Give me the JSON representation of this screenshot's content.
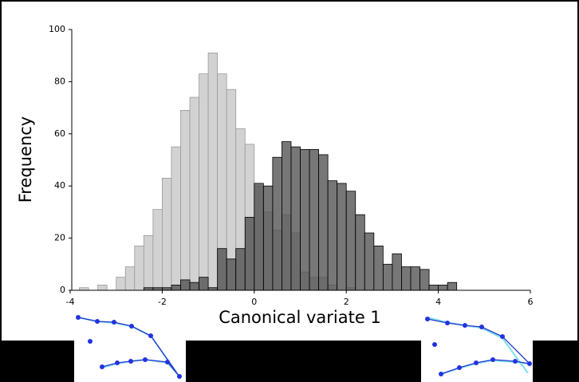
{
  "chart_data": {
    "type": "histogram",
    "xlabel": "Canonical variate 1",
    "ylabel": "Frequency",
    "xlim": [
      -4,
      6
    ],
    "ylim": [
      0,
      100
    ],
    "xticks": [
      -4,
      -2,
      0,
      2,
      4,
      6
    ],
    "yticks": [
      0,
      20,
      40,
      60,
      80,
      100
    ],
    "series": [
      {
        "color": "#d2d2d2",
        "bins": [
          -3.8,
          -3.6,
          -3.4,
          -3.2,
          -3.0,
          -2.8,
          -2.6,
          -2.4,
          -2.2,
          -2.0,
          -1.8,
          -1.6,
          -1.4,
          -1.2,
          -1.0,
          -0.8,
          -0.6,
          -0.4,
          -0.2,
          0.0,
          0.2,
          0.4,
          0.6,
          0.8,
          1.0,
          1.2,
          1.4,
          1.6,
          1.8,
          2.0,
          2.2
        ],
        "values": [
          1,
          0,
          2,
          0,
          5,
          9,
          17,
          21,
          31,
          43,
          55,
          69,
          74,
          83,
          91,
          83,
          77,
          62,
          56,
          40,
          30,
          23,
          29,
          22,
          7,
          5,
          5,
          2,
          0,
          1
        ]
      },
      {
        "color": "#4a4a4a",
        "bins": [
          -2.4,
          -2.2,
          -2.0,
          -1.8,
          -1.6,
          -1.4,
          -1.2,
          -1.0,
          -0.8,
          -0.6,
          -0.4,
          -0.2,
          0.0,
          0.2,
          0.4,
          0.6,
          0.8,
          1.0,
          1.2,
          1.4,
          1.6,
          1.8,
          2.0,
          2.2,
          2.4,
          2.6,
          2.8,
          3.0,
          3.2,
          3.4,
          3.6,
          3.8,
          4.0,
          4.2,
          4.4
        ],
        "values": [
          1,
          1,
          1,
          2,
          4,
          3,
          5,
          1,
          16,
          12,
          16,
          28,
          41,
          40,
          51,
          57,
          55,
          54,
          54,
          52,
          42,
          41,
          38,
          29,
          22,
          17,
          10,
          14,
          9,
          9,
          8,
          2,
          2,
          3
        ]
      }
    ]
  }
}
